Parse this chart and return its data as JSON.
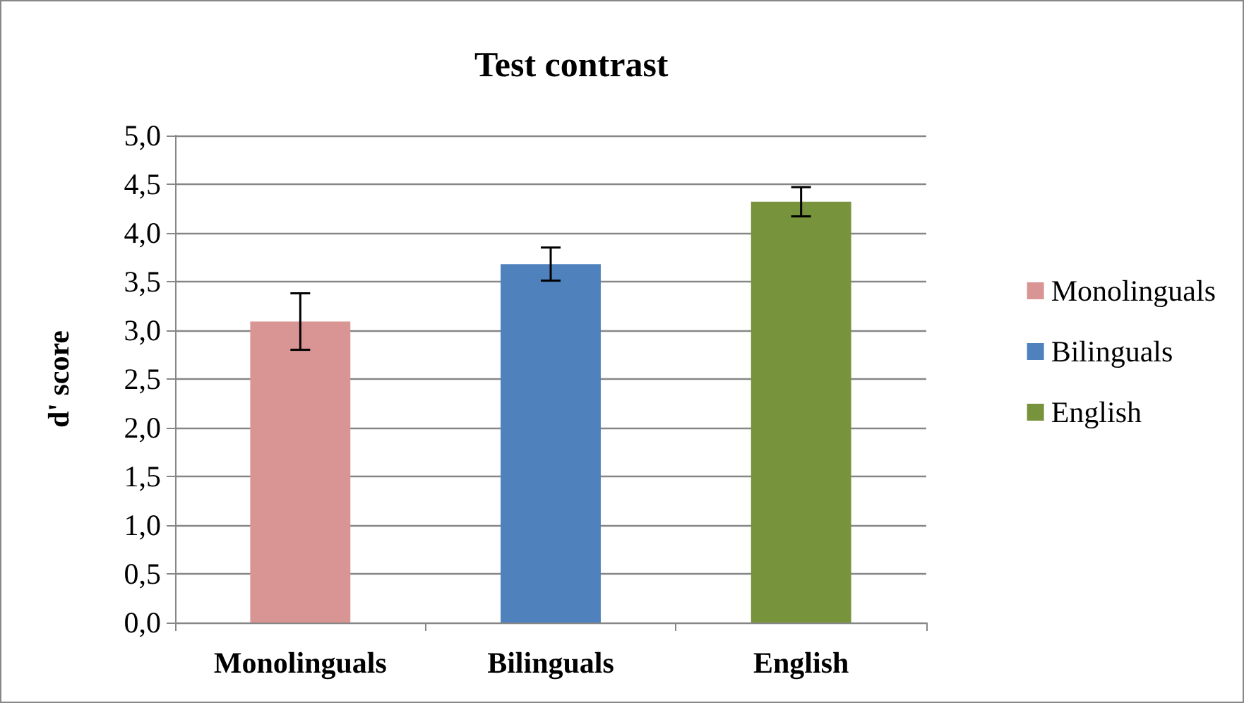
{
  "chart_data": {
    "type": "bar",
    "title": "Test contrast",
    "ylabel": "d' score",
    "categories": [
      "Monolinguals",
      "Bilinguals",
      "English"
    ],
    "series": [
      {
        "name": "Monolinguals",
        "color": "#d99594",
        "values": [
          3.09,
          null,
          null
        ],
        "errors": [
          0.29,
          null,
          null
        ]
      },
      {
        "name": "Bilinguals",
        "color": "#4f81bd",
        "values": [
          null,
          3.68,
          null
        ],
        "errors": [
          null,
          0.17,
          null
        ]
      },
      {
        "name": "English",
        "color": "#77933c",
        "values": [
          null,
          null,
          4.32
        ],
        "errors": [
          null,
          null,
          0.15
        ]
      }
    ],
    "ylim": [
      0,
      5
    ],
    "yticks": [
      {
        "value": 0,
        "label": "0,0"
      },
      {
        "value": 0.5,
        "label": "0,5"
      },
      {
        "value": 1,
        "label": "1,0"
      },
      {
        "value": 1.5,
        "label": "1,5"
      },
      {
        "value": 2,
        "label": "2,0"
      },
      {
        "value": 2.5,
        "label": "2,5"
      },
      {
        "value": 3,
        "label": "3,0"
      },
      {
        "value": 3.5,
        "label": "3,5"
      },
      {
        "value": 4,
        "label": "4,0"
      },
      {
        "value": 4.5,
        "label": "4,5"
      },
      {
        "value": 5,
        "label": "5,0"
      }
    ],
    "grid": "y",
    "legend": "right"
  }
}
